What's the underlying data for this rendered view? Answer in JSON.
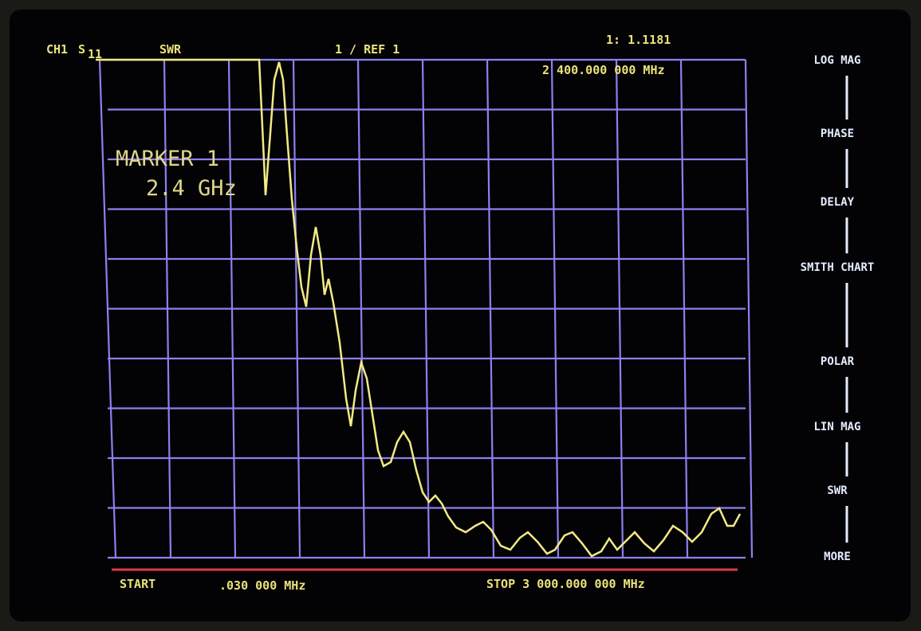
{
  "header": {
    "channel": "CH1",
    "parameter": "S",
    "parameter_sub": "11",
    "format": "SWR",
    "scale": "1 / REF 1",
    "marker_value": "1: 1.1181",
    "marker_freq": "2 400.000 000 MHz"
  },
  "annotation": {
    "line1": "MARKER 1",
    "line2": "2.4 GHz"
  },
  "footer": {
    "start_label": "START",
    "start_value": ".030 000 MHz",
    "stop": "STOP 3 000.000 000 MHz"
  },
  "softkeys": [
    "LOG MAG",
    "PHASE",
    "DELAY",
    "SMITH CHART",
    "POLAR",
    "LIN MAG",
    "SWR",
    "MORE"
  ]
}
